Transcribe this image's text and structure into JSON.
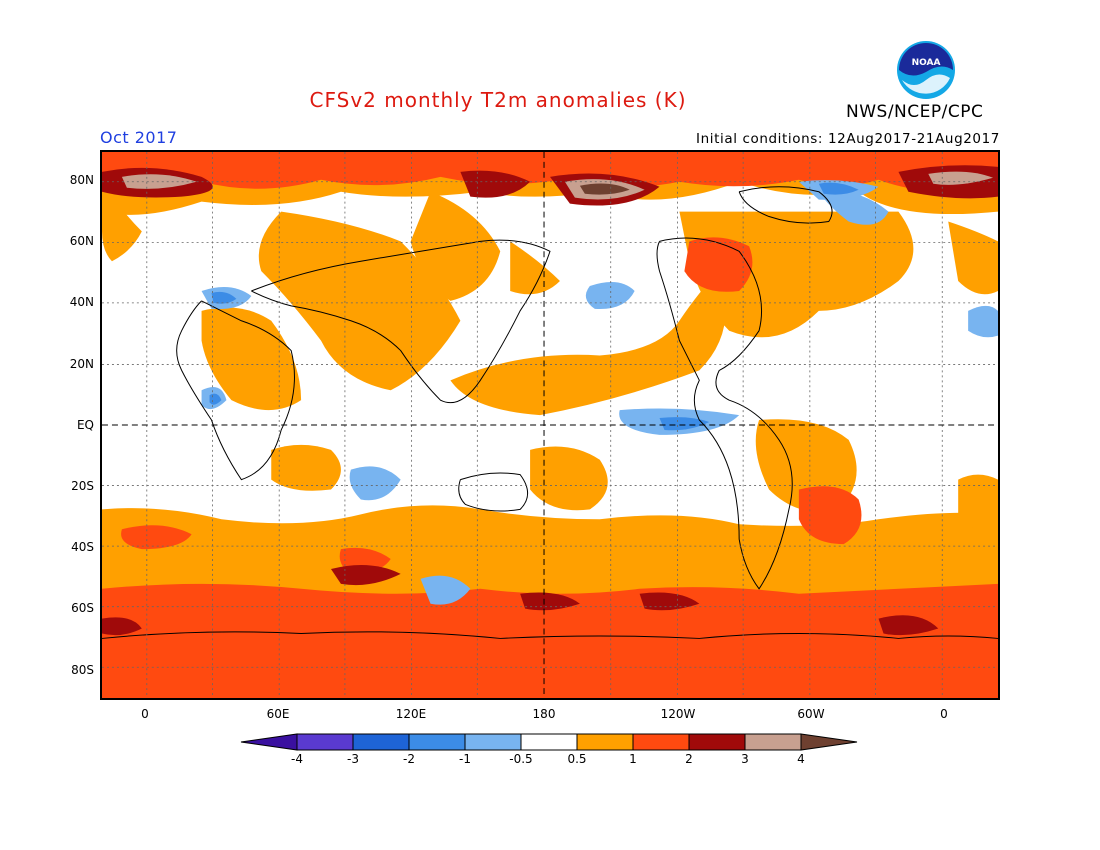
{
  "title": "CFSv2 monthly T2m anomalies (K)",
  "agency": "NWS/NCEP/CPC",
  "logo_text": "NOAA",
  "valid_month": "Oct 2017",
  "initial_conditions": "Initial conditions: 12Aug2017-21Aug2017",
  "map": {
    "projection": "cylindrical equidistant",
    "lat_labels": [
      "80N",
      "60N",
      "40N",
      "20N",
      "EQ",
      "20S",
      "40S",
      "60S",
      "80S"
    ],
    "lon_labels": [
      "0",
      "60E",
      "120E",
      "180",
      "120W",
      "60W",
      "0"
    ],
    "grid": "dotted every 20 degrees latitude and 30 degrees longitude; dashed equator and 180 meridian"
  },
  "colorbar": {
    "labels": [
      "-4",
      "-3",
      "-2",
      "-1",
      "-0.5",
      "0.5",
      "1",
      "2",
      "3",
      "4"
    ],
    "colors": [
      "#3a10a0",
      "#5a3ad0",
      "#1e64d6",
      "#3c8ce6",
      "#78b4f0",
      "#ffffff",
      "#ffa000",
      "#ff4a10",
      "#a00a0a",
      "#c8a090",
      "#6e4030"
    ],
    "units": "K"
  },
  "colors": {
    "title": "#dd1a10",
    "month": "#1f3fe0",
    "warm1": "#ffa000",
    "warm2": "#ff4a10",
    "warm3": "#a00a0a",
    "warm4": "#c8a090",
    "warm5": "#6e4030",
    "cool1": "#78b4f0",
    "cool2": "#3c8ce6"
  }
}
